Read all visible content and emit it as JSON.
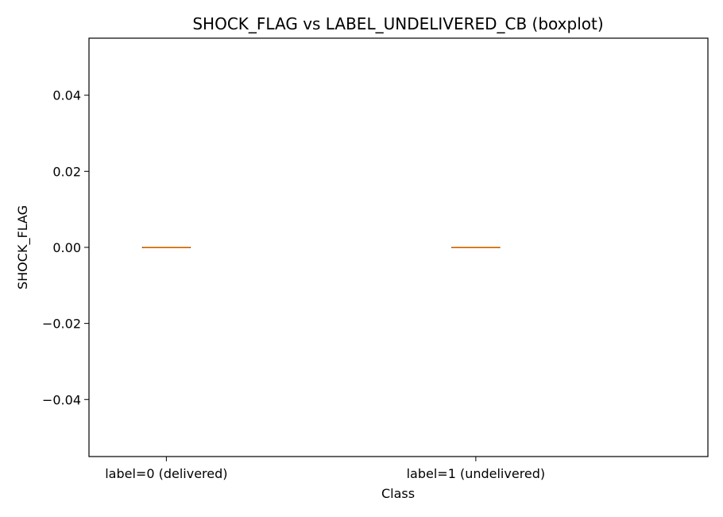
{
  "chart_data": {
    "type": "boxplot",
    "title": "SHOCK_FLAG vs LABEL_UNDELIVERED_CB (boxplot)",
    "xlabel": "Class",
    "ylabel": "SHOCK_FLAG",
    "categories": [
      "label=0 (delivered)",
      "label=1 (undelivered)"
    ],
    "boxes": [
      {
        "category": "label=0 (delivered)",
        "min": 0.0,
        "q1": 0.0,
        "median": 0.0,
        "q3": 0.0,
        "max": 0.0
      },
      {
        "category": "label=1 (undelivered)",
        "min": 0.0,
        "q1": 0.0,
        "median": 0.0,
        "q3": 0.0,
        "max": 0.0
      }
    ],
    "ylim": [
      -0.055,
      0.055
    ],
    "yticks": [
      -0.04,
      -0.02,
      0.0,
      0.02,
      0.04
    ],
    "ytick_labels": [
      "−0.04",
      "−0.02",
      "0.00",
      "0.02",
      "0.04"
    ],
    "grid": false,
    "colors": {
      "box": "#000000",
      "median": "#ff7f0e"
    }
  }
}
